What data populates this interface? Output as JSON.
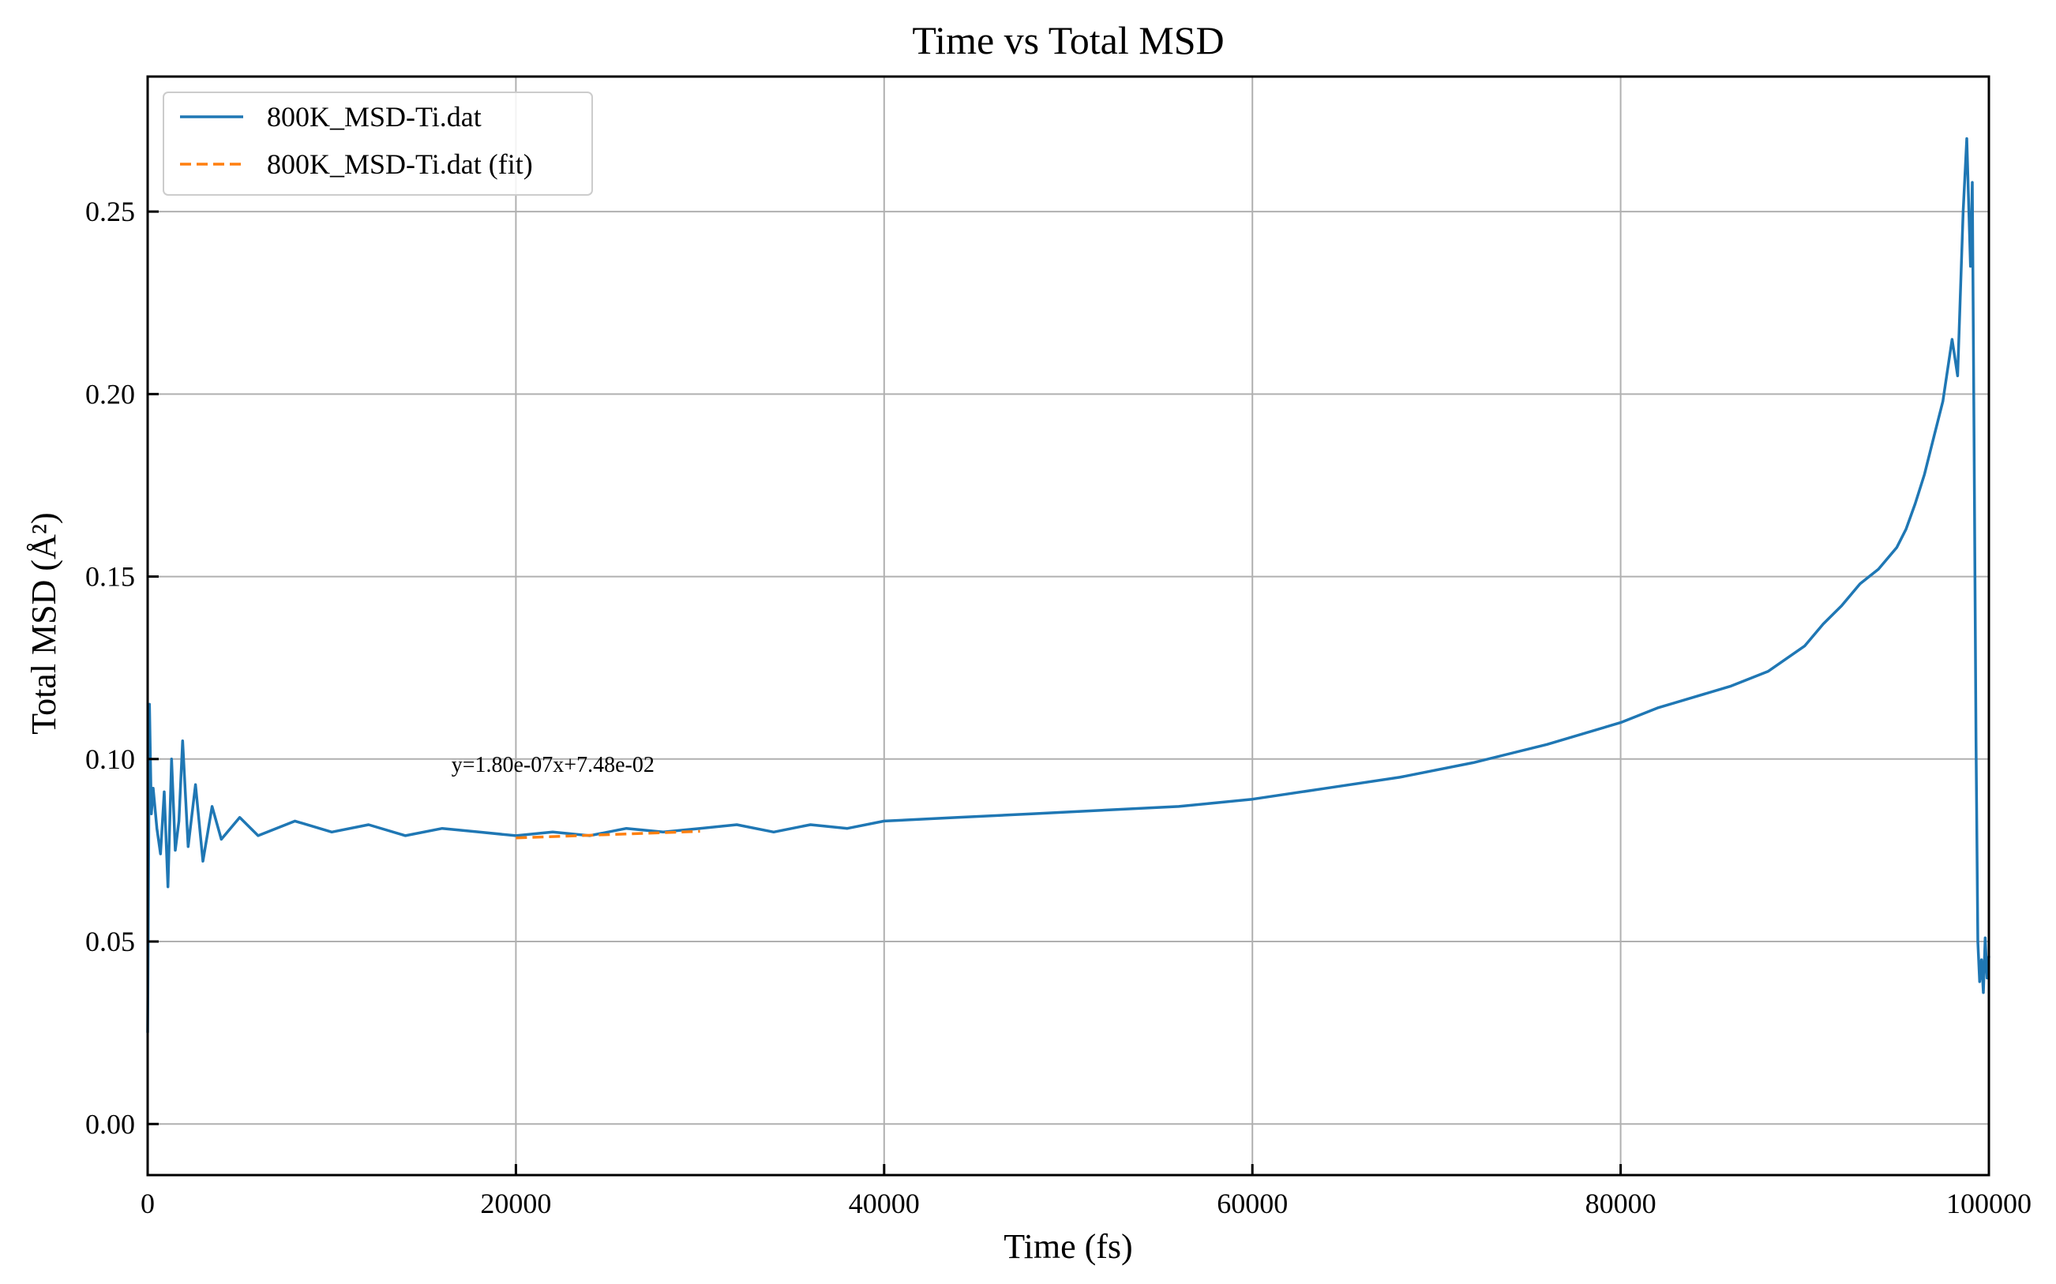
{
  "chart_data": {
    "type": "line",
    "title": "Time vs Total MSD",
    "xlabel": "Time (fs)",
    "ylabel": "Total MSD (Å²)",
    "xlim": [
      0,
      100000
    ],
    "ylim": [
      -0.014,
      0.287
    ],
    "xticks": [
      0,
      20000,
      40000,
      60000,
      80000,
      100000
    ],
    "xtick_labels": [
      "0",
      "20000",
      "40000",
      "60000",
      "80000",
      "100000"
    ],
    "yticks": [
      0.0,
      0.05,
      0.1,
      0.15,
      0.2,
      0.25
    ],
    "ytick_labels": [
      "0.00",
      "0.05",
      "0.10",
      "0.15",
      "0.20",
      "0.25"
    ],
    "grid": true,
    "legend_position": "top-left",
    "series": [
      {
        "name": "800K_MSD-Ti.dat",
        "color": "#1f77b4",
        "style": "solid",
        "x": [
          0,
          100,
          200,
          300,
          500,
          700,
          900,
          1100,
          1300,
          1500,
          1700,
          1900,
          2200,
          2600,
          3000,
          3500,
          4000,
          5000,
          6000,
          8000,
          10000,
          12000,
          14000,
          16000,
          18000,
          20000,
          22000,
          24000,
          26000,
          28000,
          30000,
          32000,
          34000,
          36000,
          38000,
          40000,
          44000,
          48000,
          52000,
          56000,
          60000,
          64000,
          68000,
          72000,
          76000,
          80000,
          82000,
          84000,
          86000,
          88000,
          90000,
          91000,
          92000,
          93000,
          94000,
          95000,
          95500,
          96000,
          96500,
          97000,
          97500,
          98000,
          98300,
          98600,
          98800,
          99000,
          99100,
          99200,
          99300,
          99400,
          99500,
          99600,
          99700,
          99800,
          99900,
          100000
        ],
        "y": [
          0.025,
          0.115,
          0.085,
          0.092,
          0.081,
          0.074,
          0.091,
          0.065,
          0.1,
          0.075,
          0.083,
          0.105,
          0.076,
          0.093,
          0.072,
          0.087,
          0.078,
          0.084,
          0.079,
          0.083,
          0.08,
          0.082,
          0.079,
          0.081,
          0.08,
          0.079,
          0.08,
          0.079,
          0.081,
          0.08,
          0.081,
          0.082,
          0.08,
          0.082,
          0.081,
          0.083,
          0.084,
          0.085,
          0.086,
          0.087,
          0.089,
          0.092,
          0.095,
          0.099,
          0.104,
          0.11,
          0.114,
          0.117,
          0.12,
          0.124,
          0.131,
          0.137,
          0.142,
          0.148,
          0.152,
          0.158,
          0.163,
          0.17,
          0.178,
          0.188,
          0.198,
          0.215,
          0.205,
          0.25,
          0.27,
          0.235,
          0.258,
          0.185,
          0.105,
          0.05,
          0.039,
          0.045,
          0.036,
          0.051,
          0.04,
          0.046
        ]
      },
      {
        "name": "800K_MSD-Ti.dat (fit)",
        "color": "#ff7f0e",
        "style": "dashed",
        "x": [
          20000,
          30000
        ],
        "y": [
          0.0784,
          0.0802
        ]
      }
    ],
    "annotations": [
      {
        "text": "y=1.80e-07x+7.48e-02",
        "x": 16500,
        "y": 0.0965
      }
    ]
  }
}
